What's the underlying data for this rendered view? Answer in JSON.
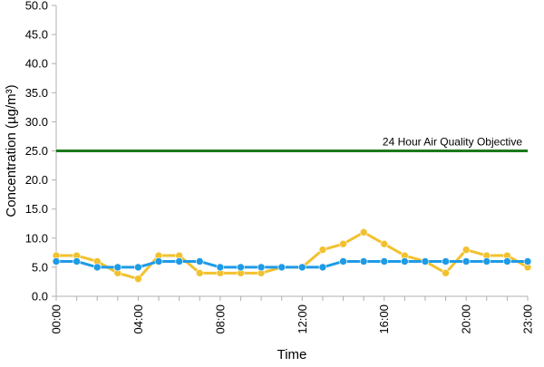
{
  "chart_data": {
    "type": "line",
    "xlabel": "Time",
    "ylabel": "Concentration (µg/m³)",
    "ylim": [
      0,
      50
    ],
    "y_ticks": [
      "0.0",
      "5.0",
      "10.0",
      "15.0",
      "20.0",
      "25.0",
      "30.0",
      "35.0",
      "40.0",
      "45.0",
      "50.0"
    ],
    "x": [
      "00:00",
      "01:00",
      "02:00",
      "03:00",
      "04:00",
      "05:00",
      "06:00",
      "07:00",
      "08:00",
      "09:00",
      "10:00",
      "11:00",
      "12:00",
      "13:00",
      "14:00",
      "15:00",
      "16:00",
      "17:00",
      "18:00",
      "19:00",
      "20:00",
      "21:00",
      "22:00",
      "23:00"
    ],
    "x_tick_labels": [
      "00:00",
      "04:00",
      "08:00",
      "12:00",
      "16:00",
      "20:00",
      "23:00"
    ],
    "grid": false,
    "legend": "none",
    "series": [
      {
        "color": "#f2c12e",
        "values": [
          7,
          7,
          6,
          4,
          3,
          7,
          7,
          4,
          4,
          4,
          4,
          5,
          5,
          8,
          9,
          11,
          9,
          7,
          6,
          4,
          8,
          7,
          7,
          5
        ]
      },
      {
        "color": "#1e9be6",
        "values": [
          6,
          6,
          5,
          5,
          5,
          6,
          6,
          6,
          5,
          5,
          5,
          5,
          5,
          5,
          6,
          6,
          6,
          6,
          6,
          6,
          6,
          6,
          6,
          6
        ]
      }
    ],
    "reference_line": {
      "label": "24 Hour Air Quality Objective",
      "value": 25,
      "color": "#1a7a1a"
    },
    "axis_color": "#b0b0b0"
  }
}
